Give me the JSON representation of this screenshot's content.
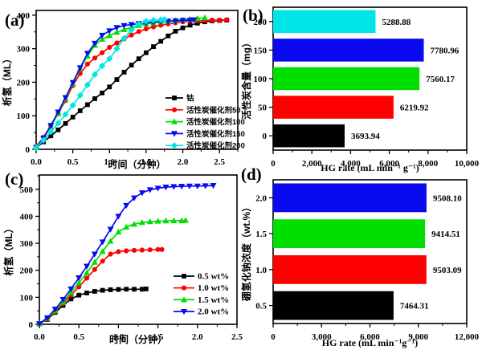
{
  "figure": {
    "background": "#ffffff",
    "description": "Four-panel hydrogen generation figure"
  },
  "colors": {
    "black": "#000000",
    "red": "#ff0000",
    "green": "#00df00",
    "blue": "#0a0af0",
    "cyan": "#00e6e6"
  },
  "chart_data": [
    {
      "panel_label": "(a)",
      "type": "line",
      "xlabel": "时间（分钟）",
      "ylabel": "析氢（ML）",
      "xlim": [
        0,
        2.75
      ],
      "ylim": [
        0,
        414
      ],
      "xticks": [
        0,
        0.5,
        1.0,
        1.5,
        2.0,
        2.5
      ],
      "xtick_labels": [
        "0.0",
        "0.5",
        "1.0",
        "1.5",
        "2.0",
        "2.5"
      ],
      "yticks": [
        0,
        100,
        200,
        300,
        400
      ],
      "ytick_labels": [
        "0",
        "100",
        "200",
        "300",
        "400"
      ],
      "xminor": 0.25,
      "yminor": 50,
      "legend_position": "right-center",
      "series": [
        {
          "name": "钴",
          "color": "#000000",
          "marker": "square",
          "points": [
            [
              0,
              5
            ],
            [
              0.1,
              22
            ],
            [
              0.2,
              40
            ],
            [
              0.3,
              58
            ],
            [
              0.4,
              77
            ],
            [
              0.5,
              96
            ],
            [
              0.6,
              115
            ],
            [
              0.7,
              133
            ],
            [
              0.8,
              151
            ],
            [
              0.9,
              168
            ],
            [
              1.0,
              186
            ],
            [
              1.1,
              208
            ],
            [
              1.2,
              230
            ],
            [
              1.3,
              251
            ],
            [
              1.4,
              270
            ],
            [
              1.5,
              288
            ],
            [
              1.6,
              306
            ],
            [
              1.7,
              322
            ],
            [
              1.8,
              338
            ],
            [
              1.9,
              352
            ],
            [
              2.0,
              362
            ],
            [
              2.1,
              370
            ],
            [
              2.2,
              376
            ],
            [
              2.3,
              380
            ],
            [
              2.4,
              383
            ],
            [
              2.5,
              384
            ],
            [
              2.6,
              385
            ]
          ]
        },
        {
          "name": "活性炭催化剂50",
          "color": "#ff0000",
          "marker": "circle",
          "points": [
            [
              0,
              8
            ],
            [
              0.1,
              36
            ],
            [
              0.2,
              70
            ],
            [
              0.3,
              106
            ],
            [
              0.4,
              145
            ],
            [
              0.5,
              190
            ],
            [
              0.6,
              226
            ],
            [
              0.7,
              254
            ],
            [
              0.8,
              272
            ],
            [
              0.9,
              288
            ],
            [
              1.0,
              304
            ],
            [
              1.1,
              317
            ],
            [
              1.2,
              329
            ],
            [
              1.3,
              341
            ],
            [
              1.4,
              351
            ],
            [
              1.5,
              359
            ],
            [
              1.6,
              365
            ],
            [
              1.7,
              370
            ],
            [
              1.8,
              374
            ],
            [
              1.9,
              377
            ],
            [
              2.0,
              380
            ],
            [
              2.1,
              382
            ],
            [
              2.2,
              383
            ],
            [
              2.3,
              384
            ],
            [
              2.4,
              385
            ],
            [
              2.5,
              385
            ],
            [
              2.6,
              386
            ]
          ]
        },
        {
          "name": "活性炭催化剂100",
          "color": "#00df00",
          "marker": "triangle-up",
          "points": [
            [
              0,
              5
            ],
            [
              0.1,
              32
            ],
            [
              0.2,
              68
            ],
            [
              0.3,
              107
            ],
            [
              0.4,
              150
            ],
            [
              0.5,
              196
            ],
            [
              0.6,
              240
            ],
            [
              0.7,
              278
            ],
            [
              0.8,
              310
            ],
            [
              0.9,
              328
            ],
            [
              1.0,
              339
            ],
            [
              1.1,
              349
            ],
            [
              1.2,
              357
            ],
            [
              1.3,
              364
            ],
            [
              1.4,
              369
            ],
            [
              1.5,
              374
            ],
            [
              1.6,
              377
            ],
            [
              1.7,
              380
            ],
            [
              1.8,
              382
            ],
            [
              1.9,
              384
            ],
            [
              2.0,
              386
            ],
            [
              2.1,
              388
            ],
            [
              2.2,
              390
            ],
            [
              2.3,
              392
            ]
          ]
        },
        {
          "name": "活性炭催化剂150",
          "color": "#0a0af0",
          "marker": "triangle-down",
          "points": [
            [
              0,
              5
            ],
            [
              0.1,
              33
            ],
            [
              0.2,
              71
            ],
            [
              0.3,
              111
            ],
            [
              0.4,
              154
            ],
            [
              0.5,
              199
            ],
            [
              0.6,
              243
            ],
            [
              0.7,
              286
            ],
            [
              0.8,
              316
            ],
            [
              0.9,
              340
            ],
            [
              1.0,
              353
            ],
            [
              1.1,
              363
            ],
            [
              1.2,
              369
            ],
            [
              1.3,
              372
            ],
            [
              1.4,
              375
            ],
            [
              1.5,
              377
            ],
            [
              1.6,
              379
            ],
            [
              1.7,
              381
            ],
            [
              1.8,
              382
            ],
            [
              1.9,
              383
            ],
            [
              2.0,
              384
            ],
            [
              2.1,
              385
            ],
            [
              2.15,
              386
            ]
          ]
        },
        {
          "name": "活性炭催化剂200",
          "color": "#00e6e6",
          "marker": "diamond",
          "points": [
            [
              0,
              5
            ],
            [
              0.1,
              27
            ],
            [
              0.2,
              52
            ],
            [
              0.3,
              78
            ],
            [
              0.4,
              104
            ],
            [
              0.5,
              131
            ],
            [
              0.6,
              161
            ],
            [
              0.7,
              192
            ],
            [
              0.8,
              223
            ],
            [
              0.9,
              249
            ],
            [
              1.0,
              270
            ],
            [
              1.1,
              300
            ],
            [
              1.2,
              331
            ],
            [
              1.3,
              356
            ],
            [
              1.4,
              373
            ],
            [
              1.5,
              382
            ],
            [
              1.6,
              385
            ],
            [
              1.7,
              386
            ],
            [
              1.75,
              387
            ]
          ]
        }
      ]
    },
    {
      "panel_label": "(b)",
      "type": "barh",
      "xlabel": "HG rate (mL min⁻¹ g⁻¹)",
      "ylabel": "活性炭含量（mg）",
      "xlim": [
        0,
        10000
      ],
      "xticks": [
        0,
        2000,
        4000,
        6000,
        8000,
        10000
      ],
      "xtick_labels": [
        "0",
        "2,000",
        "4,000",
        "6,000",
        "8,000",
        "10,000"
      ],
      "xminor": 1000,
      "categories": [
        "200",
        "150",
        "100",
        "50",
        "0"
      ],
      "values": [
        5288.88,
        7780.96,
        7560.17,
        6219.92,
        3693.94
      ],
      "value_labels": [
        "5288.88",
        "7780.96",
        "7560.17",
        "6219.92",
        "3693.94"
      ],
      "bar_colors": [
        "#00e6e6",
        "#0a0af0",
        "#00df00",
        "#ff0000",
        "#000000"
      ]
    },
    {
      "panel_label": "(c)",
      "type": "line",
      "xlabel": "时间（分钟）",
      "ylabel": "析氢（ML）",
      "xlim": [
        0,
        2.5
      ],
      "ylim": [
        0,
        553
      ],
      "xticks": [
        0,
        0.5,
        1.0,
        1.5,
        2.0,
        2.5
      ],
      "xtick_labels": [
        "0.0",
        "0.5",
        "1.0",
        "1.5",
        "2.0",
        "2.5"
      ],
      "yticks": [
        0,
        100,
        200,
        300,
        400,
        500
      ],
      "ytick_labels": [
        "0",
        "100",
        "200",
        "300",
        "400",
        "500"
      ],
      "xminor": 0.25,
      "yminor": 50,
      "legend_position": "right-lower",
      "series": [
        {
          "name": "0.5 wt%",
          "color": "#000000",
          "marker": "square",
          "points": [
            [
              0,
              2
            ],
            [
              0.1,
              18
            ],
            [
              0.2,
              44
            ],
            [
              0.3,
              70
            ],
            [
              0.4,
              94
            ],
            [
              0.5,
              108
            ],
            [
              0.6,
              116
            ],
            [
              0.7,
              122
            ],
            [
              0.8,
              126
            ],
            [
              0.9,
              128
            ],
            [
              1.0,
              129
            ],
            [
              1.1,
              130
            ],
            [
              1.2,
              130
            ],
            [
              1.3,
              130
            ],
            [
              1.35,
              131
            ]
          ]
        },
        {
          "name": "1.0 wt%",
          "color": "#ff0000",
          "marker": "circle",
          "points": [
            [
              0,
              2
            ],
            [
              0.1,
              20
            ],
            [
              0.2,
              47
            ],
            [
              0.3,
              77
            ],
            [
              0.4,
              108
            ],
            [
              0.5,
              139
            ],
            [
              0.6,
              171
            ],
            [
              0.7,
              203
            ],
            [
              0.8,
              234
            ],
            [
              0.9,
              260
            ],
            [
              1.0,
              269
            ],
            [
              1.1,
              272
            ],
            [
              1.2,
              274
            ],
            [
              1.3,
              275
            ],
            [
              1.4,
              276
            ],
            [
              1.5,
              277
            ],
            [
              1.55,
              277
            ]
          ]
        },
        {
          "name": "1.5 wt%",
          "color": "#00df00",
          "marker": "triangle-up",
          "points": [
            [
              0,
              2
            ],
            [
              0.1,
              22
            ],
            [
              0.2,
              50
            ],
            [
              0.3,
              82
            ],
            [
              0.4,
              117
            ],
            [
              0.5,
              153
            ],
            [
              0.6,
              191
            ],
            [
              0.7,
              230
            ],
            [
              0.8,
              270
            ],
            [
              0.9,
              308
            ],
            [
              1.0,
              342
            ],
            [
              1.1,
              360
            ],
            [
              1.2,
              371
            ],
            [
              1.3,
              377
            ],
            [
              1.4,
              380
            ],
            [
              1.5,
              382
            ],
            [
              1.6,
              383
            ],
            [
              1.7,
              384
            ],
            [
              1.8,
              384
            ],
            [
              1.85,
              385
            ]
          ]
        },
        {
          "name": "2.0 wt%",
          "color": "#0a0af0",
          "marker": "triangle-down",
          "points": [
            [
              0,
              2
            ],
            [
              0.1,
              24
            ],
            [
              0.2,
              56
            ],
            [
              0.3,
              92
            ],
            [
              0.4,
              131
            ],
            [
              0.5,
              172
            ],
            [
              0.6,
              215
            ],
            [
              0.7,
              260
            ],
            [
              0.8,
              305
            ],
            [
              0.9,
              352
            ],
            [
              1.0,
              400
            ],
            [
              1.1,
              440
            ],
            [
              1.2,
              468
            ],
            [
              1.3,
              487
            ],
            [
              1.4,
              498
            ],
            [
              1.5,
              504
            ],
            [
              1.6,
              508
            ],
            [
              1.7,
              510
            ],
            [
              1.8,
              511
            ],
            [
              1.9,
              512
            ],
            [
              2.0,
              512
            ],
            [
              2.1,
              513
            ],
            [
              2.2,
              514
            ]
          ]
        }
      ]
    },
    {
      "panel_label": "(d)",
      "type": "barh",
      "xlabel": "HG rate (mL min⁻¹g⁻¹)",
      "ylabel": "硼氢化钠浓度（wt.%）",
      "xlim": [
        0,
        12000
      ],
      "xticks": [
        0,
        3000,
        6000,
        9000,
        12000
      ],
      "xtick_labels": [
        "0",
        "3,000",
        "6,000",
        "9,000",
        "12,000"
      ],
      "xminor": 1500,
      "categories": [
        "2.0",
        "1.5",
        "1.0",
        "0.5"
      ],
      "values": [
        9508.1,
        9414.51,
        9503.09,
        7464.31
      ],
      "value_labels": [
        "9508.10",
        "9414.51",
        "9503.09",
        "7464.31"
      ],
      "bar_colors": [
        "#0a0af0",
        "#00df00",
        "#ff0000",
        "#000000"
      ]
    }
  ]
}
